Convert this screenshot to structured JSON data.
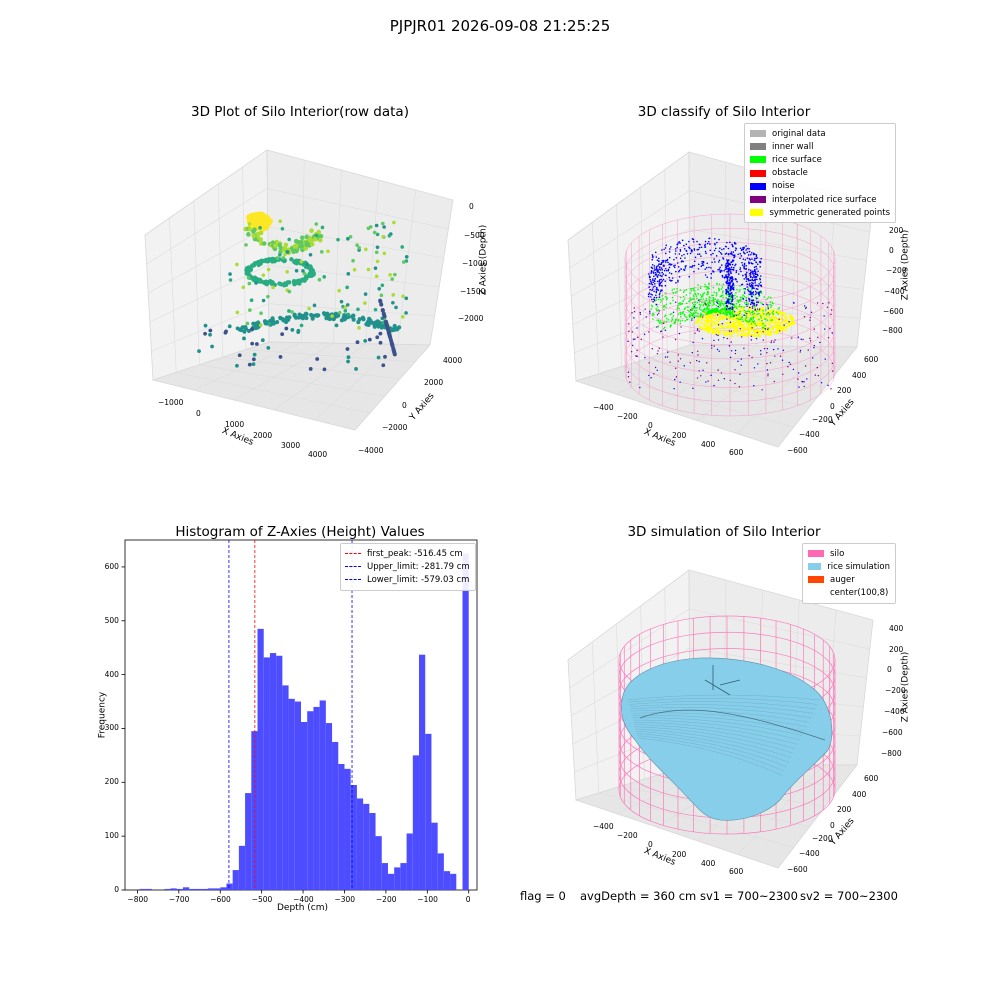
{
  "suptitle": "PJPJR01 2026-09-08 21:25:25",
  "status": {
    "flag": "flag = 0",
    "avg_depth": "avgDepth = 360 cm",
    "sv1": "sv1 = 700~2300",
    "sv2": "sv2 = 700~2300"
  },
  "chart_data": [
    {
      "type": "scatter",
      "title": "3D Plot of Silo Interior(row data)",
      "xlabel": "X Axies",
      "ylabel": "Y Axies",
      "zlabel": "Z Axies (Depth)",
      "xticks": [
        "−1000",
        "0",
        "1000",
        "2000",
        "3000",
        "4000"
      ],
      "yticks": [
        "−4000",
        "−2000",
        "0",
        "2000",
        "4000"
      ],
      "zticks": [
        "0",
        "−500",
        "−1000",
        "−1500",
        "−2000"
      ],
      "colormap": "viridis",
      "description_points": "upper arc of yellow-green points near surface, spiral of green/teal points descending, scattered dark blue points at bottom"
    },
    {
      "type": "scatter",
      "title": "3D classify of Silo Interior",
      "xticks": [
        "−400",
        "−200",
        "0",
        "200",
        "400",
        "600"
      ],
      "yticks": [
        "−600",
        "−400",
        "−200",
        "0",
        "200",
        "400",
        "600"
      ],
      "zticks": [
        "200",
        "0",
        "−200",
        "−400",
        "−600",
        "−800"
      ],
      "xlabel": "X Axies",
      "ylabel": "Y Axies",
      "zlabel": "Z Axies (Depth)",
      "legend": [
        {
          "label": "original data",
          "color": "#b3b3b3"
        },
        {
          "label": "inner wall",
          "color": "#808080"
        },
        {
          "label": "rice surface",
          "color": "#00ff00"
        },
        {
          "label": "obstacle",
          "color": "#ff0000"
        },
        {
          "label": "noise",
          "color": "#0000ff"
        },
        {
          "label": "interpolated rice surface",
          "color": "#800080"
        },
        {
          "label": "symmetric generated points",
          "color": "#ffff00"
        }
      ],
      "silo_wire_color": "#ff69b4"
    },
    {
      "type": "bar",
      "title": "Histogram of Z-Axies (Height) Values",
      "xlabel": "Depth (cm)",
      "ylabel": "Frequency",
      "xlim": [
        -830,
        20
      ],
      "ylim": [
        0,
        650
      ],
      "xticks": [
        -800,
        -700,
        -600,
        -500,
        -400,
        -300,
        -200,
        -100,
        0
      ],
      "yticks": [
        0,
        100,
        200,
        300,
        400,
        500,
        600
      ],
      "bin_width": 15,
      "bins": [
        [
          -795,
          2
        ],
        [
          -780,
          2
        ],
        [
          -765,
          0
        ],
        [
          -750,
          0
        ],
        [
          -735,
          2
        ],
        [
          -720,
          3
        ],
        [
          -705,
          2
        ],
        [
          -690,
          5
        ],
        [
          -675,
          2
        ],
        [
          -660,
          2
        ],
        [
          -645,
          2
        ],
        [
          -630,
          3
        ],
        [
          -615,
          3
        ],
        [
          -600,
          5
        ],
        [
          -585,
          12
        ],
        [
          -570,
          37
        ],
        [
          -555,
          82
        ],
        [
          -540,
          180
        ],
        [
          -525,
          295
        ],
        [
          -510,
          485
        ],
        [
          -495,
          432
        ],
        [
          -480,
          440
        ],
        [
          -465,
          435
        ],
        [
          -450,
          380
        ],
        [
          -435,
          355
        ],
        [
          -420,
          350
        ],
        [
          -405,
          312
        ],
        [
          -390,
          332
        ],
        [
          -375,
          340
        ],
        [
          -360,
          352
        ],
        [
          -345,
          310
        ],
        [
          -330,
          275
        ],
        [
          -315,
          234
        ],
        [
          -300,
          225
        ],
        [
          -285,
          195
        ],
        [
          -270,
          170
        ],
        [
          -255,
          160
        ],
        [
          -240,
          143
        ],
        [
          -225,
          100
        ],
        [
          -210,
          50
        ],
        [
          -195,
          30
        ],
        [
          -180,
          42
        ],
        [
          -165,
          50
        ],
        [
          -150,
          105
        ],
        [
          -135,
          250
        ],
        [
          -120,
          437
        ],
        [
          -105,
          290
        ],
        [
          -90,
          125
        ],
        [
          -75,
          68
        ],
        [
          -60,
          35
        ],
        [
          -45,
          30
        ],
        [
          -15,
          625
        ]
      ],
      "bar_color": "#4d4dff",
      "vlines": [
        {
          "label": "first_peak: -516.45 cm",
          "x": -516.45,
          "color": "#ff0000"
        },
        {
          "label": "Upper_limit: -281.79 cm",
          "x": -281.79,
          "color": "#0000ff"
        },
        {
          "label": "Lower_limit: -579.03 cm",
          "x": -579.03,
          "color": "#0000ff"
        }
      ]
    },
    {
      "type": "area",
      "title": "3D simulation of Silo Interior",
      "xticks": [
        "−400",
        "−200",
        "0",
        "200",
        "400",
        "600"
      ],
      "yticks": [
        "−600",
        "−400",
        "−200",
        "0",
        "200",
        "400",
        "600"
      ],
      "zticks": [
        "400",
        "200",
        "0",
        "−200",
        "−400",
        "−600",
        "−800"
      ],
      "xlabel": "X Axies",
      "ylabel": "Y Axies",
      "zlabel": "Z Axies (Depth)",
      "legend": [
        {
          "label": "silo",
          "color": "#ff69b4"
        },
        {
          "label": "rice simulation",
          "color": "#87ceeb"
        },
        {
          "label": "auger",
          "color": "#ff4500"
        },
        {
          "label": "center(100,8)",
          "color": "#ffffff"
        }
      ],
      "surface_color": "#87ceeb"
    }
  ]
}
